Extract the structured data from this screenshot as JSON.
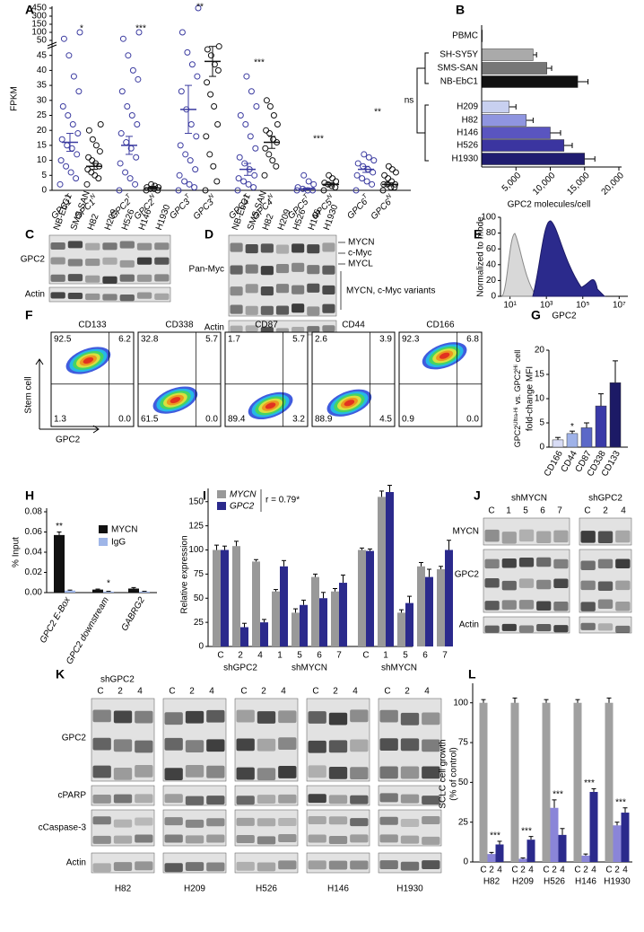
{
  "panel_labels": [
    "A",
    "B",
    "C",
    "D",
    "E",
    "F",
    "G",
    "H",
    "I",
    "J",
    "K",
    "L"
  ],
  "chart_data": [
    {
      "type": "dot",
      "ylabel": "FPKM",
      "genes": [
        "GPC1",
        "GPC2",
        "GPC3",
        "GPC4",
        "GPC5",
        "GPC6"
      ],
      "series": [
        {
          "name": "T",
          "color": "#3b3ba0",
          "values": [
            [
              2,
              4,
              6,
              8,
              10,
              12,
              14,
              15,
              17,
              19,
              22,
              25,
              28,
              33,
              38,
              45,
              60,
              100
            ],
            [
              0,
              2,
              4,
              6,
              9,
              11,
              14,
              16,
              19,
              22,
              25,
              28,
              33,
              37,
              40,
              45,
              60,
              100
            ],
            [
              0,
              1,
              2,
              3,
              5,
              7,
              10,
              12,
              15,
              18,
              22,
              27,
              33,
              38,
              42,
              46,
              100,
              450
            ],
            [
              0,
              1,
              2,
              3,
              4,
              5,
              7,
              9,
              11,
              14,
              18,
              22,
              25,
              28,
              33,
              38
            ],
            [
              0,
              0,
              0,
              0.5,
              1,
              2,
              3,
              5
            ],
            [
              0,
              2,
              3,
              4,
              5,
              6,
              7,
              8,
              9,
              10,
              11,
              12
            ]
          ],
          "mean": [
            16,
            15,
            27,
            7,
            0.5,
            7
          ],
          "error": [
            3,
            3,
            8,
            2,
            0.3,
            1
          ]
        },
        {
          "name": "N",
          "color": "#111111",
          "values": [
            [
              2,
              4,
              5,
              6,
              7,
              8,
              9,
              10,
              11,
              13,
              15,
              17,
              20,
              22
            ],
            [
              0,
              0,
              0.5,
              0.5,
              1,
              1,
              1.5,
              2
            ],
            [
              0,
              3,
              8,
              12,
              18,
              22,
              28,
              32,
              36,
              40,
              42,
              45,
              47,
              48
            ],
            [
              5,
              8,
              10,
              12,
              14,
              16,
              17,
              19,
              20,
              22,
              25,
              28,
              30
            ],
            [
              0,
              1,
              1.5,
              2,
              2.5,
              3,
              4,
              5
            ],
            [
              0,
              1,
              1,
              2,
              2,
              2,
              3,
              4,
              5,
              6,
              7,
              8
            ]
          ],
          "mean": [
            8,
            0.8,
            43,
            16,
            2,
            2
          ],
          "error": [
            1,
            0.3,
            5,
            2,
            0.5,
            0.5
          ]
        }
      ],
      "stars": [
        "*",
        "***",
        "**",
        "***",
        "***",
        "**"
      ],
      "ylim": [
        0,
        450
      ],
      "ybreak": 50,
      "yticks": [
        0,
        5,
        10,
        15,
        20,
        25,
        30,
        35,
        40,
        45,
        50,
        100,
        150,
        300,
        450
      ]
    },
    {
      "type": "hbar",
      "xlabel": "GPC2 molecules/cell",
      "categories": [
        "PBMC",
        "SH-SY5Y",
        "SMS-SAN",
        "NB-EbC1",
        "H209",
        "H82",
        "H146",
        "H526",
        "H1930"
      ],
      "values": [
        100,
        7500,
        9500,
        14000,
        4000,
        6500,
        10000,
        12000,
        15000
      ],
      "errors": [
        0,
        500,
        700,
        1500,
        1000,
        1000,
        1500,
        1200,
        1500
      ],
      "colors": [
        "#111111",
        "#aaaaaa",
        "#777777",
        "#111111",
        "#c8d0f0",
        "#8f95e0",
        "#5a55c0",
        "#3b35a0",
        "#201c70"
      ],
      "annotation": "ns",
      "xlim": [
        0,
        20000
      ],
      "xticks": [
        {
          "value": 5000,
          "label": "5,000"
        },
        {
          "value": 10000,
          "label": "10,000"
        },
        {
          "value": 15000,
          "label": "15,000"
        },
        {
          "value": 20000,
          "label": "20,000"
        }
      ]
    },
    {
      "type": "histogram",
      "ylabel": "Normalized to mode",
      "xlabel": "GPC2",
      "xscale": "log",
      "xlim": [
        3,
        30000000
      ],
      "ylim": [
        0,
        100
      ],
      "xticks": [
        {
          "value": 10,
          "label": "10¹"
        },
        {
          "value": 1000,
          "label": "10³"
        },
        {
          "value": 100000,
          "label": "10⁵"
        },
        {
          "value": 10000000,
          "label": "10⁷"
        }
      ],
      "yticks": [
        0,
        20,
        40,
        60,
        80,
        100
      ]
    },
    {
      "type": "bar",
      "ylabel_parts": [
        "GPC2",
        "Ultra-Hi",
        "vs. GPC2",
        "Hi",
        "cell"
      ],
      "ylabel2": "fold-change MFI",
      "categories": [
        "CD166",
        "CD44",
        "CD87",
        "CD338",
        "CD133"
      ],
      "values": [
        1.5,
        2.8,
        4,
        8.5,
        13.3
      ],
      "errors": [
        0.5,
        0.5,
        1,
        2.5,
        4.5
      ],
      "colors": [
        "#d8dcf5",
        "#9fb2e8",
        "#5b68c8",
        "#3a3aa8",
        "#1c1a66"
      ],
      "star": "*",
      "ylim": [
        0,
        20
      ],
      "yticks": [
        0,
        5,
        10,
        15,
        20
      ]
    },
    {
      "type": "grouped-bar",
      "ylabel": "% Input",
      "categories": [
        "GPC2 E-Box",
        "GPC2 downstream",
        "GABRG2"
      ],
      "series": [
        {
          "name": "MYCN",
          "color": "#111111",
          "values": [
            0.057,
            0.003,
            0.004
          ],
          "errors": [
            0.003,
            0.0005,
            0.001
          ]
        },
        {
          "name": "IgG",
          "color": "#9fb6e8",
          "values": [
            0.002,
            0.001,
            0.001
          ],
          "errors": [
            0.0005,
            0.0003,
            0.0003
          ]
        }
      ],
      "stars": [
        "**",
        "*"
      ],
      "ylim": [
        0,
        0.08
      ],
      "yticks": [
        {
          "value": 0,
          "label": "0.00"
        },
        {
          "value": 0.02,
          "label": "0.02"
        },
        {
          "value": 0.04,
          "label": "0.04"
        },
        {
          "value": 0.06,
          "label": "0.06"
        },
        {
          "value": 0.08,
          "label": "0.08"
        }
      ]
    },
    {
      "type": "grouped-bar",
      "ylabel": "Relative expression",
      "categories": [
        "C",
        "2",
        "4",
        "1",
        "5",
        "6",
        "7",
        "C",
        "1",
        "5",
        "6",
        "7"
      ],
      "groups": [
        "shGPC2",
        "shMYCN",
        "shMYCN"
      ],
      "series": [
        {
          "name": "MYCN",
          "color": "#999999",
          "values": [
            100,
            104,
            88,
            57,
            35,
            72,
            57,
            100,
            155,
            35,
            83,
            80
          ],
          "errors": [
            5,
            5,
            2,
            2,
            4,
            3,
            3,
            2,
            6,
            3,
            4,
            3
          ]
        },
        {
          "name": "GPC2",
          "color": "#2b2a8c",
          "values": [
            100,
            20,
            25,
            83,
            43,
            50,
            66,
            99,
            160,
            45,
            72,
            100
          ],
          "errors": [
            4,
            4,
            3,
            6,
            5,
            6,
            8,
            2,
            7,
            7,
            8,
            10
          ]
        }
      ],
      "annotation": "r = 0.79*",
      "ylim": [
        0,
        160
      ],
      "yticks": [
        0,
        25,
        50,
        75,
        100,
        125,
        150
      ]
    },
    {
      "type": "grouped-bar",
      "ylabel": "SCLC cell growth",
      "ylabel2": "(% of control)",
      "categories": [
        "H82",
        "H209",
        "H526",
        "H146",
        "H1930"
      ],
      "series": [
        {
          "name": "C",
          "color": "#a0a0a0",
          "values": [
            100,
            100,
            100,
            100,
            100
          ],
          "errors": [
            2,
            3,
            2,
            2,
            3
          ]
        },
        {
          "name": "2",
          "color": "#8a85d8",
          "values": [
            5,
            2,
            34,
            4,
            23
          ],
          "errors": [
            1,
            0.5,
            5,
            1,
            2
          ]
        },
        {
          "name": "4",
          "color": "#2b2a8c",
          "values": [
            11,
            14,
            17,
            44,
            31
          ],
          "errors": [
            2,
            2,
            4,
            2,
            3
          ]
        }
      ],
      "stars": [
        "***",
        "***",
        "***",
        "***",
        "***"
      ],
      "ylim": [
        0,
        110
      ],
      "yticks": [
        0,
        25,
        50,
        75,
        100
      ]
    }
  ],
  "blots": {
    "C": {
      "lanes": [
        "NB-EbC1",
        "SMS-SAN",
        "H82",
        "H209",
        "H526",
        "H146",
        "H1930"
      ],
      "rows": [
        "GPC2",
        "Actin"
      ]
    },
    "D": {
      "lanes": [
        "NB-EbC1",
        "SMS-SAN",
        "H82",
        "H209",
        "H526",
        "H146",
        "H1930"
      ],
      "rows": [
        "Pan-Myc",
        "Actin"
      ],
      "bands": [
        "MYCN",
        "c-Myc",
        "MYCL",
        "MYCN, c-Myc variants"
      ]
    },
    "J": {
      "groups": [
        "shMYCN",
        "shGPC2"
      ],
      "lanes": [
        [
          "C",
          "1",
          "5",
          "6",
          "7"
        ],
        [
          "C",
          "2",
          "4"
        ]
      ],
      "rows": [
        "MYCN",
        "GPC2",
        "Actin"
      ]
    },
    "K": {
      "group": "shGPC2",
      "lanes": [
        "C",
        "2",
        "4"
      ],
      "cell_lines": [
        "H82",
        "H209",
        "H526",
        "H146",
        "H1930"
      ],
      "rows": [
        "GPC2",
        "cPARP",
        "cCaspase-3",
        "Actin"
      ]
    }
  },
  "flow": {
    "y_label": "Stem cell",
    "x_label": "GPC2",
    "plots": [
      {
        "marker": "CD133",
        "quadrants": [
          "92.5",
          "6.2",
          "1.3",
          "0.0"
        ]
      },
      {
        "marker": "CD338",
        "quadrants": [
          "32.8",
          "5.7",
          "61.5",
          "0.0"
        ]
      },
      {
        "marker": "CD87",
        "quadrants": [
          "1.7",
          "5.7",
          "89.4",
          "3.2"
        ]
      },
      {
        "marker": "CD44",
        "quadrants": [
          "2.6",
          "3.9",
          "88.9",
          "4.5"
        ]
      },
      {
        "marker": "CD166",
        "quadrants": [
          "92.3",
          "6.8",
          "0.9",
          "0.0"
        ]
      }
    ]
  }
}
